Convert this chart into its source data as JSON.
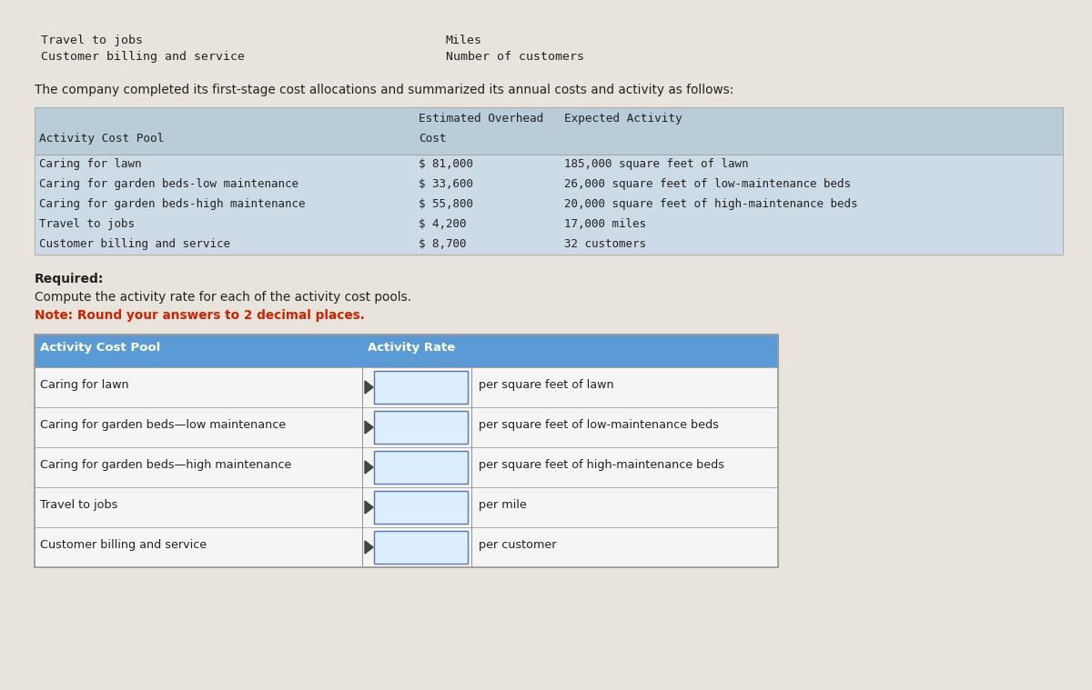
{
  "bg_color": "#e8e4dc",
  "top_left_lines": [
    "Travel to jobs",
    "Customer billing and service"
  ],
  "top_right_lines": [
    "Miles",
    "Number of customers"
  ],
  "intro_text": "The company completed its first-stage cost allocations and summarized its annual costs and activity as follows:",
  "table1_header_row1": "Estimated Overhead",
  "table1_col1_header": "Activity Cost Pool",
  "table1_col2_header": "Cost",
  "table1_col3_header": "Expected Activity",
  "table1_rows": [
    [
      "Caring for lawn",
      "$ 81,000",
      "185,000 square feet of lawn"
    ],
    [
      "Caring for garden beds-low maintenance",
      "$ 33,600",
      "26,000 square feet of low-maintenance beds"
    ],
    [
      "Caring for garden beds-high maintenance",
      "$ 55,800",
      "20,000 square feet of high-maintenance beds"
    ],
    [
      "Travel to jobs",
      "$ 4,200",
      "17,000 miles"
    ],
    [
      "Customer billing and service",
      "$ 8,700",
      "32 customers"
    ]
  ],
  "required_text": "Required:",
  "compute_text": "Compute the activity rate for each of the activity cost pools.",
  "note_text": "Note: Round your answers to 2 decimal places.",
  "table2_col1_header": "Activity Cost Pool",
  "table2_col2_header": "Activity Rate",
  "table2_rows": [
    [
      "Caring for lawn",
      "per square feet of lawn"
    ],
    [
      "Caring for garden beds—low maintenance",
      "per square feet of low-maintenance beds"
    ],
    [
      "Caring for garden beds—high maintenance",
      "per square feet of high-maintenance beds"
    ],
    [
      "Travel to jobs",
      "per mile"
    ],
    [
      "Customer billing and service",
      "per customer"
    ]
  ],
  "table1_header_bg": "#b8cdd8",
  "table1_row_bg": "#ccdbe6",
  "table2_header_bg": "#5b9bd5",
  "table2_header_text": "#ffffff",
  "table2_row_bg": "#f5f5f5",
  "table2_input_bg": "#ddeeff",
  "table2_input_border": "#5577aa",
  "note_color": "#cc2200",
  "font_color": "#222222",
  "border_color": "#999999",
  "mono_font": "DejaVu Sans Mono",
  "sans_font": "DejaVu Sans"
}
